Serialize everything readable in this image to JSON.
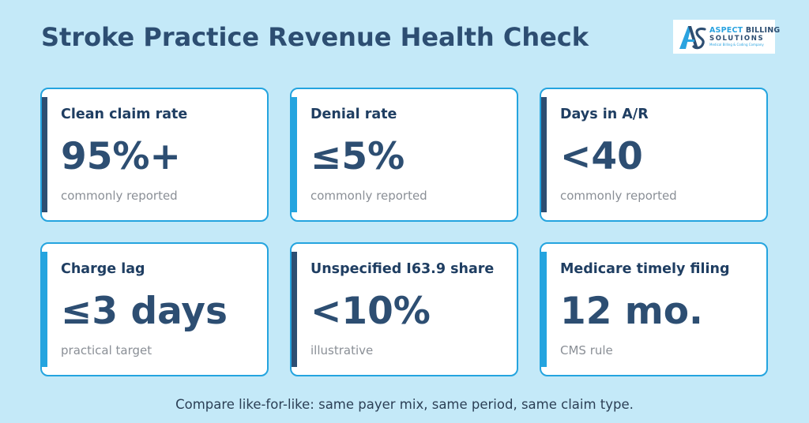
{
  "header": {
    "title": "Stroke Practice Revenue Health Check"
  },
  "logo": {
    "icon": "aspect-billing-logo-icon",
    "line1_a": "ASPECT",
    "line1_b": "BILLING",
    "line2": "SOLUTIONS",
    "line3": "Medical Billing & Coding Company"
  },
  "cards": [
    {
      "label": "Clean claim rate",
      "value": "95%+",
      "note": "commonly reported",
      "accent": "#2d4e72"
    },
    {
      "label": "Denial rate",
      "value": "≤5%",
      "note": "commonly reported",
      "accent": "#24a4df"
    },
    {
      "label": "Days in A/R",
      "value": "<40",
      "note": "commonly reported",
      "accent": "#2d4e72"
    },
    {
      "label": "Charge lag",
      "value": "≤3 days",
      "note": "practical target",
      "accent": "#24a4df"
    },
    {
      "label": "Unspecified I63.9 share",
      "value": "<10%",
      "note": "illustrative",
      "accent": "#2d4e72"
    },
    {
      "label": "Medicare timely filing",
      "value": "12 mo.",
      "note": "CMS rule",
      "accent": "#24a4df"
    }
  ],
  "footer": {
    "text": "Compare like-for-like: same payer mix, same period, same claim type."
  },
  "colors": {
    "background": "#c4e9f8",
    "navy": "#2d4e72",
    "sky": "#24a4df",
    "card": "#ffffff"
  }
}
